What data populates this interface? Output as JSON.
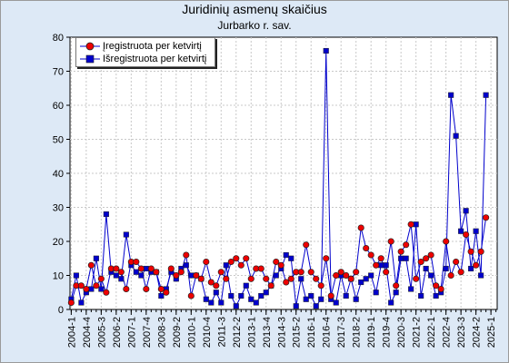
{
  "chart_data": {
    "type": "line",
    "title": "Juridinių asmenų skaičius",
    "subtitle": "Jurbarko r. sav.",
    "xlabel": "",
    "ylabel": "",
    "ylim": [
      0,
      80
    ],
    "yticks": [
      0,
      10,
      20,
      30,
      40,
      50,
      60,
      70,
      80
    ],
    "grid": true,
    "legend_position": "top-left",
    "categories": [
      "2004-1",
      "2004-2",
      "2004-3",
      "2004-4",
      "2005-1",
      "2005-2",
      "2005-3",
      "2005-4",
      "2006-1",
      "2006-2",
      "2006-3",
      "2006-4",
      "2007-1",
      "2007-2",
      "2007-3",
      "2007-4",
      "2008-1",
      "2008-2",
      "2008-3",
      "2008-4",
      "2009-1",
      "2009-2",
      "2009-3",
      "2009-4",
      "2010-1",
      "2010-2",
      "2010-3",
      "2010-4",
      "2011-1",
      "2011-2",
      "2011-3",
      "2011-4",
      "2012-1",
      "2012-2",
      "2012-3",
      "2012-4",
      "2013-1",
      "2013-2",
      "2013-3",
      "2013-4",
      "2014-1",
      "2014-2",
      "2014-3",
      "2014-4",
      "2015-1",
      "2015-2",
      "2015-3",
      "2015-4",
      "2016-1",
      "2016-2",
      "2016-3",
      "2016-4",
      "2017-1",
      "2017-2",
      "2017-3",
      "2017-4",
      "2018-1",
      "2018-2",
      "2018-3",
      "2018-4",
      "2019-1",
      "2019-2",
      "2019-3",
      "2019-4",
      "2020-1",
      "2020-2",
      "2020-3",
      "2020-4",
      "2021-1",
      "2021-2",
      "2021-3",
      "2021-4",
      "2022-1",
      "2022-2",
      "2022-3",
      "2022-4",
      "2023-1",
      "2023-2",
      "2023-3",
      "2023-4",
      "2024-1",
      "2024-2",
      "2024-3",
      "2024-4",
      "2025-1",
      "2025-2"
    ],
    "xtick_labels": [
      "2004-1",
      "2004-4",
      "2005-3",
      "2006-2",
      "2007-1",
      "2007-4",
      "2008-3",
      "2009-2",
      "2010-1",
      "2010-4",
      "2011-3",
      "2012-2",
      "2013-1",
      "2013-4",
      "2014-3",
      "2015-2",
      "2016-1",
      "2016-4",
      "2017-3",
      "2018-2",
      "2019-1",
      "2019-4",
      "2020-3",
      "2021-2",
      "2022-1",
      "2022-4",
      "2023-3",
      "2024-2",
      "2025-1"
    ],
    "series": [
      {
        "name": "Įregistruota per ketvirtį",
        "color": "#ee0000",
        "marker": "circle",
        "values": [
          2,
          7,
          7,
          6,
          13,
          7,
          9,
          5,
          12,
          12,
          11,
          6,
          14,
          14,
          12,
          6,
          12,
          11,
          6,
          5,
          12,
          10,
          11,
          16,
          4,
          10,
          9,
          14,
          8,
          7,
          11,
          9,
          14,
          15,
          13,
          15,
          9,
          12,
          12,
          9,
          7,
          14,
          13,
          8,
          9,
          11,
          11,
          19,
          11,
          9,
          7,
          15,
          4,
          10,
          11,
          10,
          9,
          11,
          24,
          18,
          16,
          13,
          15,
          11,
          20,
          7,
          17,
          19,
          25,
          9,
          14,
          15,
          16,
          7,
          6,
          20,
          10,
          14,
          11,
          22,
          17,
          13,
          17,
          27,
          0,
          0
        ],
        "present": 84
      },
      {
        "name": "Išregistruota per ketvirtį",
        "color": "#0000cc",
        "marker": "square",
        "values": [
          3,
          10,
          2,
          5,
          6,
          15,
          6,
          28,
          11,
          10,
          9,
          22,
          13,
          11,
          10,
          12,
          11,
          11,
          4,
          6,
          11,
          9,
          12,
          13,
          10,
          10,
          9,
          3,
          2,
          5,
          2,
          13,
          4,
          1,
          4,
          7,
          3,
          2,
          4,
          5,
          7,
          10,
          12,
          16,
          15,
          1,
          9,
          3,
          4,
          1,
          3,
          76,
          3,
          2,
          10,
          4,
          9,
          3,
          8,
          9,
          10,
          5,
          13,
          13,
          2,
          5,
          15,
          15,
          6,
          25,
          4,
          12,
          10,
          4,
          5,
          12,
          63,
          51,
          23,
          29,
          12,
          23,
          10,
          63,
          0,
          0
        ],
        "present": 84
      }
    ]
  }
}
